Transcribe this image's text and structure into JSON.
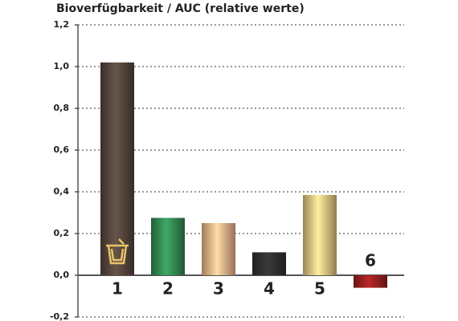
{
  "chart_data": {
    "type": "bar",
    "title": "Bioverfügbarkeit / AUC (relative werte)",
    "categories": [
      "1",
      "2",
      "3",
      "4",
      "5",
      "6"
    ],
    "values": [
      1.02,
      0.275,
      0.25,
      0.11,
      0.385,
      -0.06
    ],
    "colors": [
      "#4d3f36",
      "#2f7d4b",
      "#d6a27c",
      "#2b2b2b",
      "#cbb274",
      "#8c1c1c"
    ],
    "ylim": [
      -0.2,
      1.2
    ],
    "yticks": [
      {
        "value": -0.2,
        "label": "-0,2"
      },
      {
        "value": 0,
        "label": "0,0"
      },
      {
        "value": 0.2,
        "label": "0,2"
      },
      {
        "value": 0.4,
        "label": "0,4"
      },
      {
        "value": 0.6,
        "label": "0,6"
      },
      {
        "value": 0.8,
        "label": "0,8"
      },
      {
        "value": 1.0,
        "label": "1,0"
      },
      {
        "value": 1.2,
        "label": "1,2"
      }
    ],
    "grid": true
  }
}
